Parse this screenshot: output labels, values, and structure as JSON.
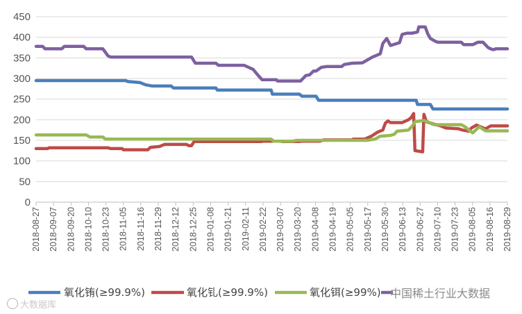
{
  "chart_data": {
    "type": "line",
    "y_ticks": [
      "0",
      "50",
      "100",
      "150",
      "200",
      "250",
      "300",
      "350",
      "400",
      "450"
    ],
    "ylim": [
      0,
      450
    ],
    "grid": "horizontal",
    "legend_position": "bottom",
    "x_tick_labels": [
      "2018-08-27",
      "2018-09-07",
      "2018-09-20",
      "2018-10-10",
      "2018-10-23",
      "2018-11-05",
      "2018-11-16",
      "2018-11-29",
      "2018-12-12",
      "2018-12-25",
      "2019-01-08",
      "2019-01-21",
      "2019-02-11",
      "2019-02-22",
      "2019-03-07",
      "2019-03-20",
      "2019-04-08",
      "2019-04-19",
      "2019-05-05",
      "2019-05-17",
      "2019-05-30",
      "2019-06-13",
      "2019-06-27",
      "2019-07-10",
      "2019-07-23",
      "2019-08-05",
      "2019-08-16",
      "2019-08-29"
    ],
    "series": [
      {
        "name": "氧化铕(≥99.9%)",
        "color": "#4a7ebb",
        "points": [
          [
            "2018-08-27",
            295
          ],
          [
            "2018-11-05",
            295
          ],
          [
            "2018-11-06",
            293
          ],
          [
            "2018-11-16",
            290
          ],
          [
            "2018-11-20",
            285
          ],
          [
            "2018-11-25",
            282
          ],
          [
            "2018-12-10",
            282
          ],
          [
            "2018-12-12",
            277
          ],
          [
            "2019-01-14",
            277
          ],
          [
            "2019-01-15",
            272
          ],
          [
            "2019-02-26",
            272
          ],
          [
            "2019-02-27",
            262
          ],
          [
            "2019-03-20",
            262
          ],
          [
            "2019-03-22",
            257
          ],
          [
            "2019-04-02",
            257
          ],
          [
            "2019-04-04",
            247
          ],
          [
            "2019-06-19",
            247
          ],
          [
            "2019-06-20",
            237
          ],
          [
            "2019-06-30",
            237
          ],
          [
            "2019-07-02",
            226
          ],
          [
            "2019-08-29",
            226
          ]
        ]
      },
      {
        "name": "氧化钆(≥99.9%)",
        "color": "#be4b48",
        "points": [
          [
            "2018-08-27",
            130
          ],
          [
            "2018-09-05",
            130
          ],
          [
            "2018-09-06",
            132
          ],
          [
            "2018-10-22",
            132
          ],
          [
            "2018-10-24",
            130
          ],
          [
            "2018-11-02",
            130
          ],
          [
            "2018-11-03",
            127
          ],
          [
            "2018-11-22",
            127
          ],
          [
            "2018-11-24",
            133
          ],
          [
            "2018-12-01",
            135
          ],
          [
            "2018-12-05",
            140
          ],
          [
            "2018-12-22",
            140
          ],
          [
            "2018-12-24",
            137
          ],
          [
            "2018-12-26",
            137
          ],
          [
            "2018-12-28",
            147
          ],
          [
            "2019-02-18",
            147
          ],
          [
            "2019-02-20",
            148
          ],
          [
            "2019-03-05",
            148
          ],
          [
            "2019-03-07",
            147
          ],
          [
            "2019-03-20",
            147
          ],
          [
            "2019-03-22",
            148
          ],
          [
            "2019-04-05",
            148
          ],
          [
            "2019-04-08",
            151
          ],
          [
            "2019-04-30",
            151
          ],
          [
            "2019-05-01",
            153
          ],
          [
            "2019-05-10",
            153
          ],
          [
            "2019-05-15",
            160
          ],
          [
            "2019-05-20",
            170
          ],
          [
            "2019-05-24",
            175
          ],
          [
            "2019-05-26",
            192
          ],
          [
            "2019-05-28",
            197
          ],
          [
            "2019-05-30",
            193
          ],
          [
            "2019-06-08",
            193
          ],
          [
            "2019-06-13",
            200
          ],
          [
            "2019-06-15",
            205
          ],
          [
            "2019-06-17",
            215
          ],
          [
            "2019-06-18",
            125
          ],
          [
            "2019-06-22",
            123
          ],
          [
            "2019-06-24",
            122
          ],
          [
            "2019-06-25",
            213
          ],
          [
            "2019-06-27",
            195
          ],
          [
            "2019-07-02",
            190
          ],
          [
            "2019-07-08",
            185
          ],
          [
            "2019-07-12",
            180
          ],
          [
            "2019-07-22",
            178
          ],
          [
            "2019-07-25",
            175
          ],
          [
            "2019-07-30",
            172
          ],
          [
            "2019-08-01",
            180
          ],
          [
            "2019-08-05",
            187
          ],
          [
            "2019-08-08",
            183
          ],
          [
            "2019-08-12",
            178
          ],
          [
            "2019-08-16",
            185
          ],
          [
            "2019-08-29",
            185
          ]
        ]
      },
      {
        "name": "氧化铒(≥99%)",
        "color": "#98b954",
        "points": [
          [
            "2018-08-27",
            163
          ],
          [
            "2018-10-05",
            163
          ],
          [
            "2018-10-08",
            158
          ],
          [
            "2018-10-18",
            158
          ],
          [
            "2018-10-20",
            153
          ],
          [
            "2019-02-26",
            153
          ],
          [
            "2019-02-28",
            148
          ],
          [
            "2019-03-15",
            148
          ],
          [
            "2019-03-18",
            150
          ],
          [
            "2019-04-20",
            150
          ],
          [
            "2019-05-12",
            150
          ],
          [
            "2019-05-18",
            153
          ],
          [
            "2019-05-22",
            160
          ],
          [
            "2019-05-30",
            162
          ],
          [
            "2019-06-02",
            165
          ],
          [
            "2019-06-04",
            172
          ],
          [
            "2019-06-13",
            175
          ],
          [
            "2019-06-16",
            185
          ],
          [
            "2019-06-18",
            195
          ],
          [
            "2019-06-22",
            197
          ],
          [
            "2019-06-25",
            198
          ],
          [
            "2019-06-28",
            195
          ],
          [
            "2019-07-01",
            190
          ],
          [
            "2019-07-03",
            188
          ],
          [
            "2019-07-24",
            188
          ],
          [
            "2019-07-27",
            183
          ],
          [
            "2019-07-30",
            175
          ],
          [
            "2019-08-02",
            168
          ],
          [
            "2019-08-05",
            177
          ],
          [
            "2019-08-07",
            183
          ],
          [
            "2019-08-10",
            177
          ],
          [
            "2019-08-12",
            173
          ],
          [
            "2019-08-29",
            173
          ]
        ]
      },
      {
        "name": "",
        "color": "#7d60a0",
        "points": [
          [
            "2018-08-27",
            378
          ],
          [
            "2018-09-01",
            378
          ],
          [
            "2018-09-03",
            372
          ],
          [
            "2018-09-16",
            372
          ],
          [
            "2018-09-18",
            378
          ],
          [
            "2018-10-03",
            378
          ],
          [
            "2018-10-05",
            372
          ],
          [
            "2018-10-18",
            372
          ],
          [
            "2018-10-22",
            355
          ],
          [
            "2018-10-24",
            352
          ],
          [
            "2018-12-26",
            352
          ],
          [
            "2018-12-29",
            337
          ],
          [
            "2019-01-14",
            337
          ],
          [
            "2019-01-16",
            332
          ],
          [
            "2019-02-05",
            332
          ],
          [
            "2019-02-12",
            322
          ],
          [
            "2019-02-16",
            307
          ],
          [
            "2019-02-19",
            297
          ],
          [
            "2019-03-02",
            297
          ],
          [
            "2019-03-03",
            294
          ],
          [
            "2019-03-21",
            294
          ],
          [
            "2019-03-25",
            307
          ],
          [
            "2019-03-28",
            309
          ],
          [
            "2019-03-31",
            318
          ],
          [
            "2019-04-02",
            318
          ],
          [
            "2019-04-06",
            327
          ],
          [
            "2019-04-10",
            329
          ],
          [
            "2019-04-22",
            329
          ],
          [
            "2019-04-24",
            334
          ],
          [
            "2019-04-30",
            337
          ],
          [
            "2019-05-08",
            338
          ],
          [
            "2019-05-12",
            345
          ],
          [
            "2019-05-16",
            352
          ],
          [
            "2019-05-22",
            360
          ],
          [
            "2019-05-24",
            385
          ],
          [
            "2019-05-27",
            397
          ],
          [
            "2019-05-30",
            380
          ],
          [
            "2019-06-06",
            387
          ],
          [
            "2019-06-08",
            407
          ],
          [
            "2019-06-12",
            410
          ],
          [
            "2019-06-16",
            410
          ],
          [
            "2019-06-20",
            413
          ],
          [
            "2019-06-21",
            425
          ],
          [
            "2019-06-26",
            425
          ],
          [
            "2019-06-28",
            408
          ],
          [
            "2019-06-30",
            397
          ],
          [
            "2019-07-04",
            390
          ],
          [
            "2019-07-06",
            388
          ],
          [
            "2019-07-24",
            388
          ],
          [
            "2019-07-26",
            382
          ],
          [
            "2019-08-02",
            382
          ],
          [
            "2019-08-06",
            388
          ],
          [
            "2019-08-10",
            388
          ],
          [
            "2019-08-14",
            375
          ],
          [
            "2019-08-16",
            372
          ],
          [
            "2019-08-18",
            370
          ],
          [
            "2019-08-20",
            372
          ],
          [
            "2019-08-29",
            372
          ]
        ]
      }
    ]
  },
  "watermarks": {
    "left": "大数据库",
    "right": "中国稀土行业大数据"
  }
}
